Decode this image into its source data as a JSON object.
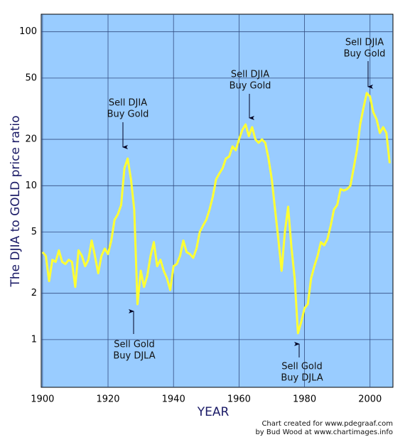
{
  "chart_data": {
    "type": "line",
    "y_label": "The DJIA to GOLD price ratio",
    "x_label": "YEAR",
    "credit": [
      "Chart created for www.pdegraaf.com",
      "by Bud Wood at www.chartimages.info"
    ],
    "annotations": [
      [
        "Sell DJIA",
        "Buy Gold"
      ],
      [
        "Sell DJIA",
        "Buy Gold"
      ],
      [
        "Sell DJIA",
        "Buy Gold"
      ],
      [
        "Sell Gold",
        "Buy DJLA"
      ],
      [
        "Sell Gold",
        "Buy DJLA"
      ]
    ],
    "log_scale": true,
    "grid": true,
    "color": "#ffff33",
    "background": "#99ccff",
    "xlim": [
      1899.6,
      2007
    ],
    "ylim": [
      0.49,
      130
    ],
    "xticks": [
      1900,
      1920,
      1940,
      1960,
      1980,
      2000
    ],
    "yticks": [
      1,
      2,
      5,
      10,
      20,
      50,
      100
    ],
    "x": [
      1900,
      1901,
      1902,
      1903,
      1904,
      1905,
      1906,
      1907,
      1908,
      1909,
      1910,
      1911,
      1912,
      1913,
      1914,
      1915,
      1916,
      1917,
      1918,
      1919,
      1920,
      1921,
      1922,
      1923,
      1924,
      1925,
      1926,
      1927,
      1928,
      1929,
      1930,
      1931,
      1932,
      1933,
      1934,
      1935,
      1936,
      1937,
      1938,
      1939,
      1940,
      1941,
      1942,
      1943,
      1944,
      1945,
      1946,
      1947,
      1948,
      1949,
      1950,
      1951,
      1952,
      1953,
      1954,
      1955,
      1956,
      1957,
      1958,
      1959,
      1960,
      1961,
      1962,
      1963,
      1964,
      1965,
      1966,
      1967,
      1968,
      1969,
      1970,
      1971,
      1972,
      1973,
      1974,
      1975,
      1976,
      1977,
      1978,
      1979,
      1980,
      1981,
      1982,
      1983,
      1984,
      1985,
      1986,
      1987,
      1988,
      1989,
      1990,
      1991,
      1992,
      1993,
      1994,
      1995,
      1996,
      1997,
      1998,
      1999,
      2000,
      2001,
      2002,
      2003,
      2004,
      2005,
      2006
    ],
    "values": [
      3.7,
      3.5,
      2.4,
      3.3,
      3.2,
      3.8,
      3.2,
      3.1,
      3.3,
      3.2,
      2.2,
      3.8,
      3.5,
      3.0,
      3.3,
      4.4,
      3.5,
      2.7,
      3.5,
      3.9,
      3.6,
      4.4,
      6.0,
      6.5,
      7.5,
      13,
      15,
      11,
      7,
      1.7,
      2.8,
      2.2,
      2.6,
      3.5,
      4.3,
      3.0,
      3.3,
      2.8,
      2.5,
      2.1,
      3.0,
      3.1,
      3.5,
      4.4,
      3.7,
      3.6,
      3.4,
      3.9,
      5.0,
      5.5,
      6.0,
      7.0,
      8.5,
      11,
      12,
      13,
      15,
      15.5,
      18,
      17,
      20,
      23,
      25,
      21,
      24,
      20,
      19,
      20,
      19,
      15,
      11,
      7,
      4.5,
      2.8,
      5,
      7.3,
      4,
      2.5,
      1.1,
      1.3,
      1.6,
      1.7,
      2.5,
      3.0,
      3.5,
      4.3,
      4.1,
      4.5,
      5.5,
      7,
      7.5,
      9.5,
      9.3,
      9.5,
      10,
      13,
      17,
      25,
      32,
      40,
      38,
      30,
      27,
      22,
      24,
      22,
      14
    ]
  }
}
